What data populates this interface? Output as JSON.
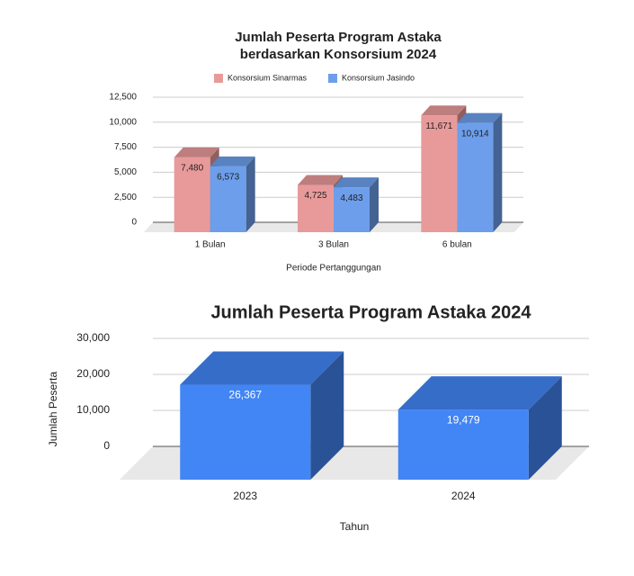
{
  "chart_data": [
    {
      "type": "bar3d",
      "title": "Jumlah Peserta Program Astaka",
      "subtitle": "berdasarkan Konsorsium 2024",
      "categories": [
        "1 Bulan",
        "3 Bulan",
        "6 bulan"
      ],
      "series": [
        {
          "name": "Konsorsium Sinarmas",
          "color": "#e89a9a",
          "values": [
            7480,
            4725,
            11671
          ],
          "value_labels": [
            "7,480",
            "4,725",
            "11,671"
          ]
        },
        {
          "name": "Konsorsium Jasindo",
          "color": "#6d9eeb",
          "values": [
            6573,
            4483,
            10914
          ],
          "value_labels": [
            "6,573",
            "4,483",
            "10,914"
          ]
        }
      ],
      "xlabel": "Periode Pertanggungan",
      "ylim": [
        0,
        12500
      ],
      "yticks": [
        0,
        {
          "value": 2500,
          "label": "2,500"
        },
        {
          "value": 5000,
          "label": "5,000"
        },
        {
          "value": 7500,
          "label": "7,500"
        },
        {
          "value": 10000,
          "label": "10,000"
        },
        {
          "value": 12500,
          "label": "12,500"
        }
      ],
      "grid": true,
      "legend": "top"
    },
    {
      "type": "bar3d",
      "title": "Jumlah Peserta Program Astaka 2024",
      "categories": [
        "2023",
        "2024"
      ],
      "series": [
        {
          "name": "Jumlah Peserta",
          "color": "#4285f4",
          "values": [
            26367,
            19479
          ],
          "value_labels": [
            "26,367",
            "19,479"
          ]
        }
      ],
      "xlabel": "Tahun",
      "ylabel": "Jumlah Peserta",
      "ylim": [
        0,
        30000
      ],
      "yticks": [
        0,
        {
          "value": 10000,
          "label": "10,000"
        },
        {
          "value": 20000,
          "label": "20,000"
        },
        {
          "value": 30000,
          "label": "30,000"
        }
      ],
      "grid": true,
      "legend": "none"
    }
  ]
}
